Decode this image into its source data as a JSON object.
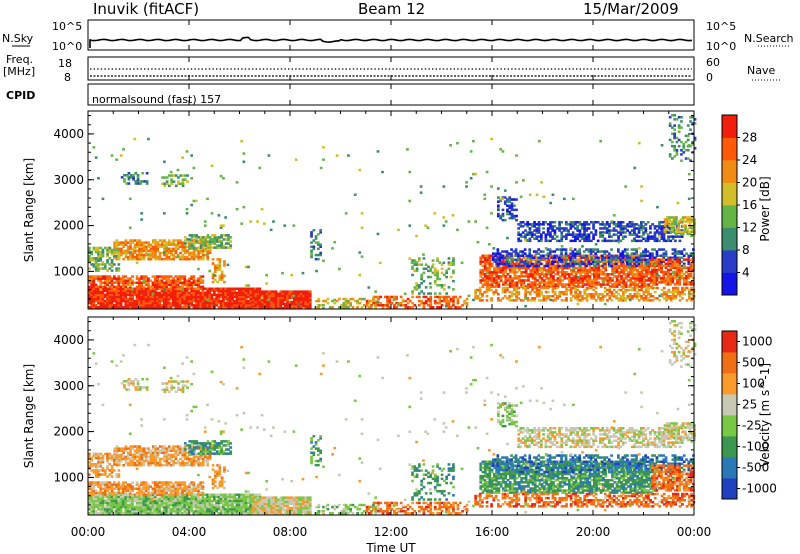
{
  "header": {
    "station": "Inuvik (fitACF)",
    "beam": "Beam 12",
    "date": "15/Mar/2009"
  },
  "top_panels": {
    "nsky_label": "N.Sky",
    "nsky_ticks": [
      "10^5",
      "10^0"
    ],
    "nsearch_ticks": [
      "10^5",
      "10^0"
    ],
    "nsearch_label": "N.Search",
    "freq_label_1": "Freq.",
    "freq_label_2": "[MHz]",
    "freq_ticks": [
      "18",
      "8"
    ],
    "nave_ticks": [
      "60",
      "0"
    ],
    "nave_label": "Nave",
    "cpid_label": "CPID",
    "cpid_text": "normalsound (fast) 157"
  },
  "colors": {
    "power_scale": [
      "#1414e6",
      "#283cc8",
      "#3c8c6e",
      "#64b446",
      "#d2be28",
      "#f08c14",
      "#ff5a0a",
      "#f01e0a"
    ],
    "velocity_scale": [
      "#2040c0",
      "#2a78b4",
      "#3c9650",
      "#78c846",
      "#c8c8b4",
      "#fa9a2a",
      "#f06e14",
      "#e62814"
    ]
  },
  "chart_data": [
    {
      "type": "heatmap",
      "title": "",
      "xlabel": "Time UT",
      "ylabel": "Slant Range [km]",
      "x_ticks": [
        "00:00",
        "04:00",
        "08:00",
        "12:00",
        "16:00",
        "20:00",
        "00:00"
      ],
      "x_range_hours": [
        0,
        24
      ],
      "y_ticks": [
        1000,
        2000,
        3000,
        4000
      ],
      "y_range_km": [
        180,
        4500
      ],
      "colorbar": {
        "label": "Power [dB]",
        "ticks": [
          "28",
          "24",
          "20",
          "16",
          "12",
          "8",
          "4"
        ],
        "range": [
          0,
          32
        ]
      }
    },
    {
      "type": "heatmap",
      "title": "",
      "xlabel": "Time UT",
      "ylabel": "Slant Range [km]",
      "x_ticks": [
        "00:00",
        "04:00",
        "08:00",
        "12:00",
        "16:00",
        "20:00",
        "00:00"
      ],
      "x_range_hours": [
        0,
        24
      ],
      "y_ticks": [
        1000,
        2000,
        3000,
        4000
      ],
      "y_range_km": [
        180,
        4500
      ],
      "colorbar": {
        "label": "Velocity [m s^-1]",
        "ticks": [
          "1000",
          "500",
          "100",
          "25",
          "-25",
          "-100",
          "-500",
          "-1000"
        ]
      }
    }
  ]
}
